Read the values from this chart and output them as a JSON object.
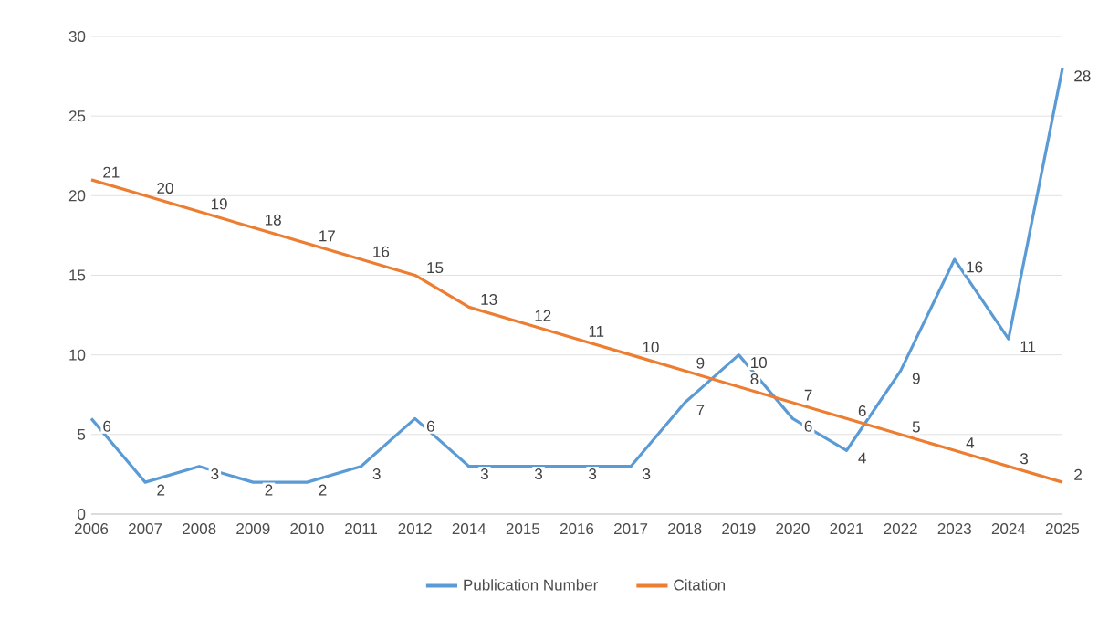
{
  "chart_data": {
    "type": "line",
    "categories": [
      "2006",
      "2007",
      "2008",
      "2009",
      "2010",
      "2011",
      "2012",
      "2014",
      "2015",
      "2016",
      "2017",
      "2018",
      "2019",
      "2020",
      "2021",
      "2022",
      "2023",
      "2024",
      "2025"
    ],
    "series": [
      {
        "name": "Publication Number",
        "color": "#5b9bd5",
        "values": [
          6,
          2,
          3,
          2,
          2,
          3,
          6,
          3,
          3,
          3,
          3,
          7,
          10,
          6,
          4,
          9,
          16,
          11,
          28
        ]
      },
      {
        "name": "Citation",
        "color": "#ed7d31",
        "values": [
          21,
          20,
          19,
          18,
          17,
          16,
          15,
          13,
          12,
          11,
          10,
          9,
          8,
          7,
          6,
          5,
          4,
          3,
          2
        ]
      }
    ],
    "ylim": [
      0,
      30
    ],
    "yticks": [
      0,
      5,
      10,
      15,
      20,
      25,
      30
    ],
    "grid": "y",
    "legend": "bottom",
    "data_labels": true,
    "marker": "none",
    "line_style": "solid"
  }
}
